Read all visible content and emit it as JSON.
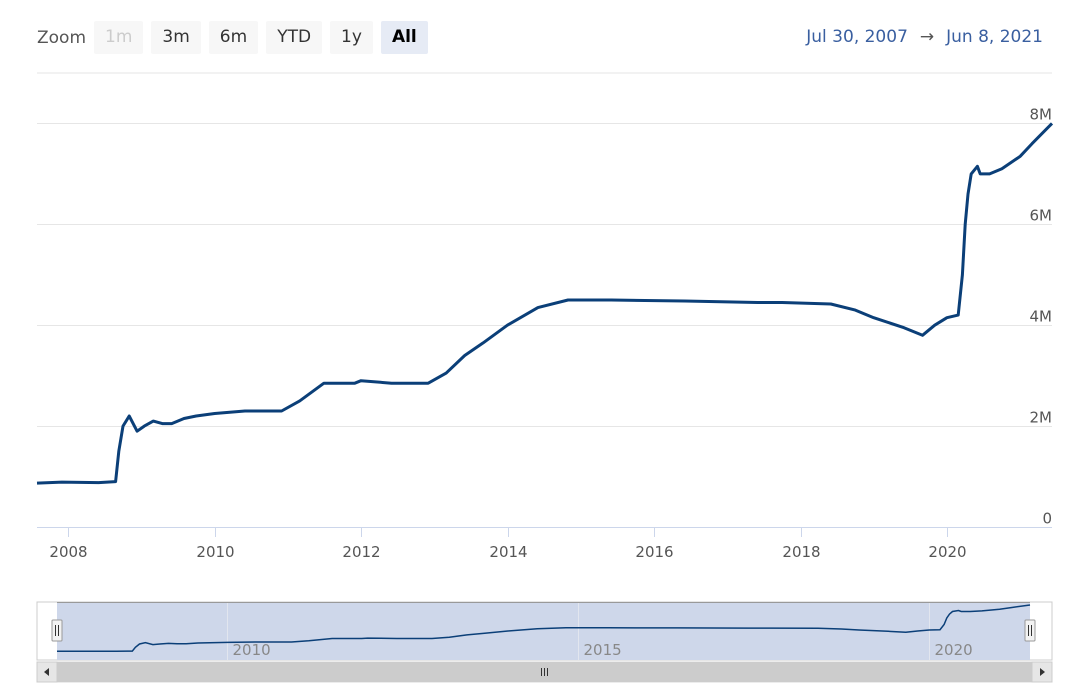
{
  "zoom": {
    "label": "Zoom",
    "buttons": [
      {
        "label": "1m",
        "state": "disabled"
      },
      {
        "label": "3m",
        "state": "normal"
      },
      {
        "label": "6m",
        "state": "normal"
      },
      {
        "label": "YTD",
        "state": "normal"
      },
      {
        "label": "1y",
        "state": "normal"
      },
      {
        "label": "All",
        "state": "selected"
      }
    ]
  },
  "range": {
    "from": "Jul 30, 2007",
    "arrow": "→",
    "to": "Jun 8, 2021"
  },
  "colors": {
    "line": "#0b3f78",
    "navigator_fill": "#ced7ea",
    "grid": "#e6e6e6"
  },
  "chart_data": {
    "type": "line",
    "xlim": [
      "2007-07-30",
      "2021-06-08"
    ],
    "ylim": [
      0,
      9000000
    ],
    "yticks": [
      0,
      2000000,
      4000000,
      6000000,
      8000000
    ],
    "ytick_labels": [
      "0",
      "2M",
      "4M",
      "6M",
      "8M"
    ],
    "xticks": [
      "2008",
      "2010",
      "2012",
      "2014",
      "2016",
      "2018",
      "2020"
    ],
    "navigator_ticks": [
      "2010",
      "2015",
      "2020"
    ],
    "grid": true,
    "series": [
      {
        "x": [
          "2007-07-30",
          "2007-12-01",
          "2008-06-01",
          "2008-08-25",
          "2008-09-10",
          "2008-10-01",
          "2008-11-01",
          "2008-12-10",
          "2009-01-15",
          "2009-03-01",
          "2009-04-15",
          "2009-06-01",
          "2009-08-01",
          "2009-10-01",
          "2010-01-01",
          "2010-06-01",
          "2010-09-01",
          "2010-12-01",
          "2011-03-01",
          "2011-06-30",
          "2011-12-01",
          "2012-01-01",
          "2012-06-01",
          "2012-12-01",
          "2013-03-01",
          "2013-06-01",
          "2013-09-01",
          "2013-12-31",
          "2014-06-01",
          "2014-10-29",
          "2015-06-01",
          "2016-06-01",
          "2017-06-01",
          "2017-10-01",
          "2018-06-01",
          "2018-10-01",
          "2019-01-01",
          "2019-06-01",
          "2019-09-01",
          "2019-11-01",
          "2020-01-01",
          "2020-02-26",
          "2020-03-18",
          "2020-04-01",
          "2020-04-15",
          "2020-05-01",
          "2020-06-01",
          "2020-06-15",
          "2020-08-01",
          "2020-10-01",
          "2021-01-01",
          "2021-03-01",
          "2021-06-08"
        ],
        "y": [
          870000,
          890000,
          880000,
          900000,
          1500000,
          2000000,
          2200000,
          1900000,
          2000000,
          2100000,
          2050000,
          2050000,
          2150000,
          2200000,
          2250000,
          2300000,
          2300000,
          2300000,
          2500000,
          2850000,
          2850000,
          2900000,
          2850000,
          2850000,
          3050000,
          3400000,
          3650000,
          4000000,
          4350000,
          4500000,
          4500000,
          4480000,
          4450000,
          4450000,
          4420000,
          4300000,
          4150000,
          3950000,
          3800000,
          4000000,
          4150000,
          4200000,
          5000000,
          6000000,
          6600000,
          7000000,
          7150000,
          7000000,
          7000000,
          7100000,
          7350000,
          7600000,
          8000000
        ]
      }
    ]
  }
}
